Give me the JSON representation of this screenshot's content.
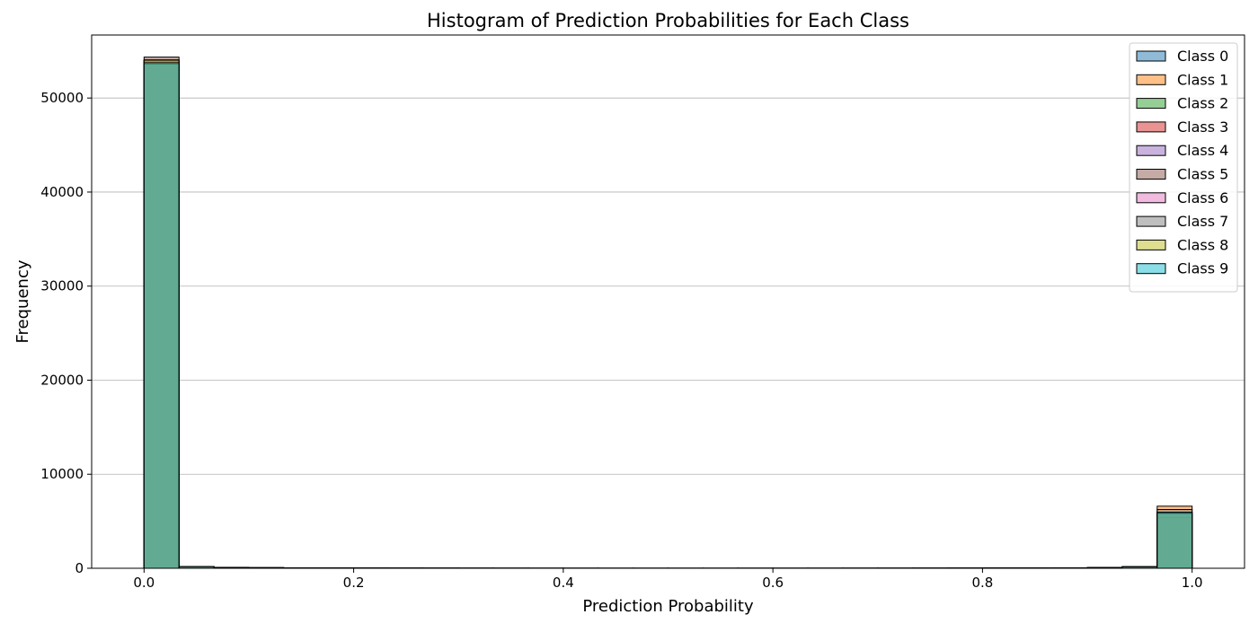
{
  "chart_data": {
    "type": "histogram",
    "title": "Histogram of Prediction Probabilities for Each Class",
    "xlabel": "Prediction Probability",
    "ylabel": "Frequency",
    "xlim": [
      -0.05,
      1.05
    ],
    "ylim": [
      0,
      56700
    ],
    "x_ticks": [
      0.0,
      0.2,
      0.4,
      0.6,
      0.8,
      1.0
    ],
    "x_tick_labels": [
      "0.0",
      "0.2",
      "0.4",
      "0.6",
      "0.8",
      "1.0"
    ],
    "y_ticks": [
      0,
      10000,
      20000,
      30000,
      40000,
      50000
    ],
    "y_tick_labels": [
      "0",
      "10000",
      "20000",
      "30000",
      "40000",
      "50000"
    ],
    "grid": "y",
    "legend_position": "top-right",
    "bins": 30,
    "bin_range": [
      0.0,
      1.0
    ],
    "bar_alpha": 0.5,
    "edge_color": "#000000",
    "series": [
      {
        "name": "Class 0",
        "color": "#1f77b4",
        "values": [
          54000,
          150,
          75,
          50,
          30,
          20,
          15,
          10,
          8,
          6,
          5,
          5,
          4,
          4,
          4,
          4,
          4,
          4,
          4,
          5,
          5,
          6,
          8,
          10,
          15,
          25,
          40,
          70,
          140,
          5900
        ]
      },
      {
        "name": "Class 1",
        "color": "#ff7f0e",
        "values": [
          53250,
          130,
          65,
          40,
          28,
          20,
          14,
          10,
          8,
          6,
          5,
          5,
          4,
          4,
          4,
          4,
          4,
          4,
          4,
          5,
          5,
          6,
          8,
          10,
          15,
          25,
          40,
          70,
          140,
          6600
        ]
      },
      {
        "name": "Class 2",
        "color": "#2ca02c",
        "values": [
          53900,
          170,
          90,
          55,
          35,
          25,
          18,
          12,
          9,
          7,
          6,
          5,
          5,
          4,
          4,
          4,
          4,
          5,
          5,
          5,
          6,
          7,
          9,
          12,
          18,
          30,
          45,
          75,
          150,
          5950
        ]
      },
      {
        "name": "Class 3",
        "color": "#d62728",
        "values": [
          53850,
          180,
          95,
          60,
          38,
          26,
          19,
          13,
          10,
          8,
          6,
          5,
          5,
          4,
          4,
          4,
          4,
          5,
          5,
          5,
          6,
          7,
          9,
          12,
          18,
          30,
          45,
          80,
          160,
          5850
        ]
      },
      {
        "name": "Class 4",
        "color": "#9467bd",
        "values": [
          54050,
          160,
          85,
          52,
          34,
          24,
          17,
          12,
          9,
          7,
          6,
          5,
          5,
          4,
          4,
          4,
          4,
          5,
          5,
          5,
          6,
          7,
          9,
          12,
          18,
          28,
          42,
          72,
          145,
          5800
        ]
      },
      {
        "name": "Class 5",
        "color": "#8c564b",
        "values": [
          54350,
          175,
          92,
          58,
          36,
          25,
          18,
          13,
          10,
          8,
          6,
          5,
          5,
          4,
          4,
          4,
          4,
          5,
          5,
          5,
          6,
          7,
          9,
          12,
          18,
          30,
          45,
          78,
          155,
          5400
        ]
      },
      {
        "name": "Class 6",
        "color": "#e377c2",
        "values": [
          54000,
          150,
          78,
          48,
          30,
          21,
          15,
          11,
          8,
          6,
          5,
          5,
          4,
          4,
          4,
          4,
          4,
          4,
          4,
          5,
          5,
          6,
          8,
          10,
          15,
          26,
          40,
          70,
          140,
          5900
        ]
      },
      {
        "name": "Class 7",
        "color": "#7f7f7f",
        "values": [
          53600,
          165,
          88,
          54,
          34,
          24,
          17,
          12,
          9,
          7,
          6,
          5,
          5,
          4,
          4,
          4,
          4,
          5,
          5,
          5,
          6,
          7,
          9,
          12,
          18,
          28,
          43,
          75,
          150,
          6250
        ]
      },
      {
        "name": "Class 8",
        "color": "#bcbd22",
        "values": [
          54050,
          190,
          100,
          62,
          40,
          28,
          20,
          14,
          11,
          8,
          7,
          6,
          5,
          5,
          4,
          4,
          5,
          5,
          5,
          6,
          7,
          8,
          10,
          13,
          20,
          32,
          50,
          85,
          170,
          5850
        ]
      },
      {
        "name": "Class 9",
        "color": "#17becf",
        "values": [
          53750,
          170,
          90,
          56,
          35,
          25,
          18,
          12,
          9,
          7,
          6,
          5,
          5,
          4,
          4,
          4,
          4,
          5,
          5,
          5,
          6,
          7,
          9,
          12,
          18,
          30,
          45,
          78,
          155,
          5950
        ]
      }
    ]
  }
}
